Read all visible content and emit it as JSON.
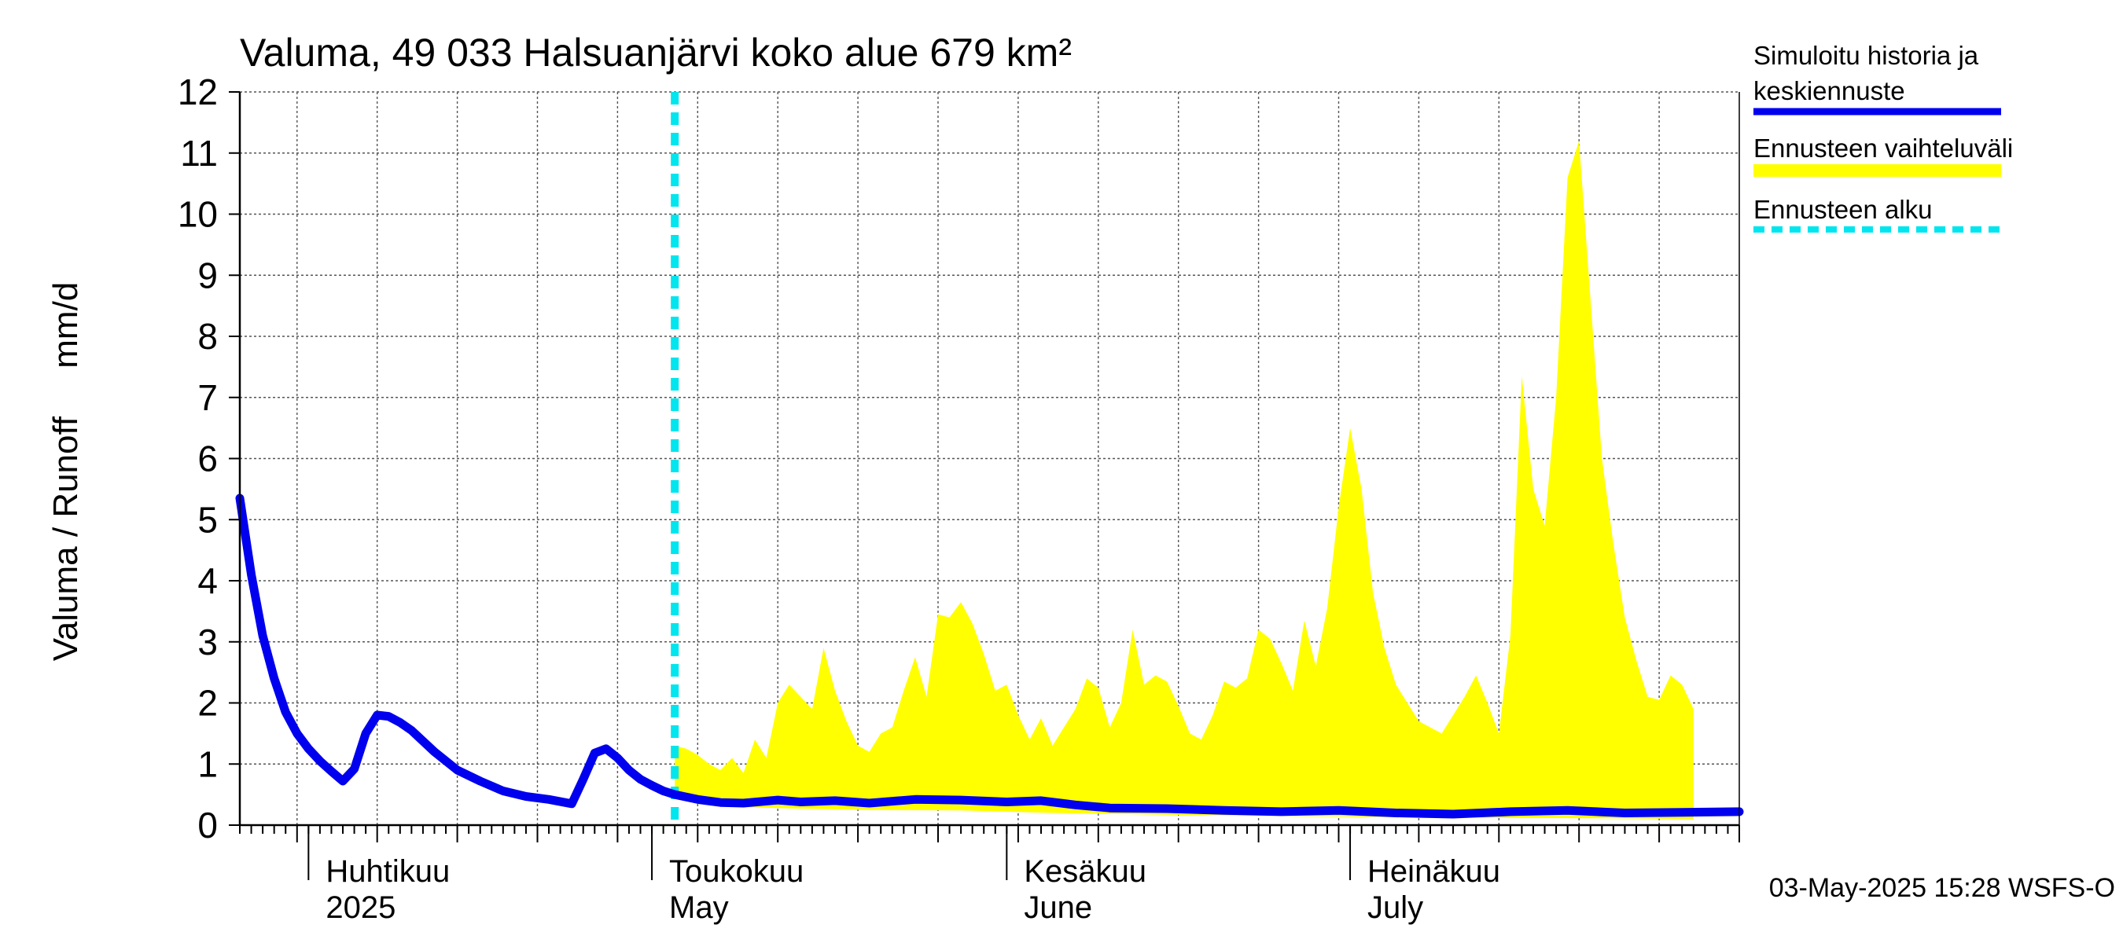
{
  "chart_data": {
    "type": "area",
    "title": "Valuma, 49 033 Halsuanjärvi koko alue 679 km²",
    "ylabel": "Valuma / Runoff     mm/d",
    "ylim": [
      0,
      12
    ],
    "yticks": [
      "0",
      "1",
      "2",
      "3",
      "4",
      "5",
      "6",
      "7",
      "8",
      "9",
      "10",
      "11",
      "12"
    ],
    "xlim": [
      "2025-03-26",
      "2025-08-04"
    ],
    "month_labels": [
      {
        "line1": "Huhtikuu",
        "line2": "2025",
        "date": "2025-04-01"
      },
      {
        "line1": "Toukokuu",
        "line2": "May",
        "date": "2025-05-01"
      },
      {
        "line1": "Kesäkuu",
        "line2": "June",
        "date": "2025-06-01"
      },
      {
        "line1": "Heinäkuu",
        "line2": "July",
        "date": "2025-07-01"
      }
    ],
    "grid": true,
    "legend_position": "right",
    "forecast_start": "2025-05-03",
    "series": [
      {
        "name": "Simuloitu historia ja keskiennuste",
        "color": "#0000ee",
        "points": [
          [
            "2025-03-26",
            5.35
          ],
          [
            "2025-03-27",
            4.1
          ],
          [
            "2025-03-28",
            3.1
          ],
          [
            "2025-03-29",
            2.4
          ],
          [
            "2025-03-30",
            1.85
          ],
          [
            "2025-03-31",
            1.5
          ],
          [
            "2025-04-01",
            1.25
          ],
          [
            "2025-04-02",
            1.05
          ],
          [
            "2025-04-03",
            0.88
          ],
          [
            "2025-04-04",
            0.72
          ],
          [
            "2025-04-05",
            0.92
          ],
          [
            "2025-04-06",
            1.5
          ],
          [
            "2025-04-07",
            1.8
          ],
          [
            "2025-04-08",
            1.78
          ],
          [
            "2025-04-09",
            1.68
          ],
          [
            "2025-04-10",
            1.55
          ],
          [
            "2025-04-12",
            1.2
          ],
          [
            "2025-04-14",
            0.9
          ],
          [
            "2025-04-16",
            0.72
          ],
          [
            "2025-04-18",
            0.56
          ],
          [
            "2025-04-20",
            0.47
          ],
          [
            "2025-04-22",
            0.42
          ],
          [
            "2025-04-24",
            0.35
          ],
          [
            "2025-04-25",
            0.75
          ],
          [
            "2025-04-26",
            1.18
          ],
          [
            "2025-04-27",
            1.25
          ],
          [
            "2025-04-28",
            1.1
          ],
          [
            "2025-04-29",
            0.9
          ],
          [
            "2025-04-30",
            0.75
          ],
          [
            "2025-05-01",
            0.65
          ],
          [
            "2025-05-02",
            0.56
          ],
          [
            "2025-05-03",
            0.5
          ],
          [
            "2025-05-05",
            0.42
          ],
          [
            "2025-05-07",
            0.37
          ],
          [
            "2025-05-09",
            0.36
          ],
          [
            "2025-05-12",
            0.41
          ],
          [
            "2025-05-14",
            0.38
          ],
          [
            "2025-05-17",
            0.4
          ],
          [
            "2025-05-20",
            0.36
          ],
          [
            "2025-05-24",
            0.42
          ],
          [
            "2025-05-28",
            0.41
          ],
          [
            "2025-06-01",
            0.38
          ],
          [
            "2025-06-04",
            0.4
          ],
          [
            "2025-06-07",
            0.33
          ],
          [
            "2025-06-10",
            0.28
          ],
          [
            "2025-06-15",
            0.27
          ],
          [
            "2025-06-20",
            0.24
          ],
          [
            "2025-06-25",
            0.22
          ],
          [
            "2025-06-30",
            0.24
          ],
          [
            "2025-07-05",
            0.2
          ],
          [
            "2025-07-10",
            0.18
          ],
          [
            "2025-07-15",
            0.22
          ],
          [
            "2025-07-20",
            0.24
          ],
          [
            "2025-07-25",
            0.2
          ],
          [
            "2025-07-30",
            0.21
          ],
          [
            "2025-08-04",
            0.22
          ]
        ]
      },
      {
        "name": "Ennusteen vaihteluväli",
        "color": "#ffff00",
        "upper": [
          [
            "2025-05-03",
            1.3
          ],
          [
            "2025-05-04",
            1.25
          ],
          [
            "2025-05-05",
            1.15
          ],
          [
            "2025-05-06",
            1.0
          ],
          [
            "2025-05-07",
            0.9
          ],
          [
            "2025-05-08",
            1.1
          ],
          [
            "2025-05-09",
            0.85
          ],
          [
            "2025-05-10",
            1.4
          ],
          [
            "2025-05-11",
            1.1
          ],
          [
            "2025-05-12",
            2.0
          ],
          [
            "2025-05-13",
            2.3
          ],
          [
            "2025-05-14",
            2.1
          ],
          [
            "2025-05-15",
            1.9
          ],
          [
            "2025-05-16",
            2.9
          ],
          [
            "2025-05-17",
            2.2
          ],
          [
            "2025-05-18",
            1.7
          ],
          [
            "2025-05-19",
            1.3
          ],
          [
            "2025-05-20",
            1.2
          ],
          [
            "2025-05-21",
            1.5
          ],
          [
            "2025-05-22",
            1.6
          ],
          [
            "2025-05-23",
            2.2
          ],
          [
            "2025-05-24",
            2.75
          ],
          [
            "2025-05-25",
            2.1
          ],
          [
            "2025-05-26",
            3.45
          ],
          [
            "2025-05-27",
            3.4
          ],
          [
            "2025-05-28",
            3.65
          ],
          [
            "2025-05-29",
            3.3
          ],
          [
            "2025-05-30",
            2.8
          ],
          [
            "2025-05-31",
            2.2
          ],
          [
            "2025-06-01",
            2.3
          ],
          [
            "2025-06-02",
            1.8
          ],
          [
            "2025-06-03",
            1.4
          ],
          [
            "2025-06-04",
            1.75
          ],
          [
            "2025-06-05",
            1.3
          ],
          [
            "2025-06-06",
            1.6
          ],
          [
            "2025-06-07",
            1.9
          ],
          [
            "2025-06-08",
            2.4
          ],
          [
            "2025-06-09",
            2.25
          ],
          [
            "2025-06-10",
            1.6
          ],
          [
            "2025-06-11",
            2.0
          ],
          [
            "2025-06-12",
            3.2
          ],
          [
            "2025-06-13",
            2.3
          ],
          [
            "2025-06-14",
            2.45
          ],
          [
            "2025-06-15",
            2.35
          ],
          [
            "2025-06-16",
            1.95
          ],
          [
            "2025-06-17",
            1.5
          ],
          [
            "2025-06-18",
            1.4
          ],
          [
            "2025-06-19",
            1.8
          ],
          [
            "2025-06-20",
            2.35
          ],
          [
            "2025-06-21",
            2.25
          ],
          [
            "2025-06-22",
            2.4
          ],
          [
            "2025-06-23",
            3.2
          ],
          [
            "2025-06-24",
            3.05
          ],
          [
            "2025-06-25",
            2.65
          ],
          [
            "2025-06-26",
            2.2
          ],
          [
            "2025-06-27",
            3.35
          ],
          [
            "2025-06-28",
            2.6
          ],
          [
            "2025-06-29",
            3.55
          ],
          [
            "2025-06-30",
            5.2
          ],
          [
            "2025-07-01",
            6.5
          ],
          [
            "2025-07-02",
            5.5
          ],
          [
            "2025-07-03",
            3.8
          ],
          [
            "2025-07-04",
            2.9
          ],
          [
            "2025-07-05",
            2.3
          ],
          [
            "2025-07-06",
            2.0
          ],
          [
            "2025-07-07",
            1.7
          ],
          [
            "2025-07-08",
            1.6
          ],
          [
            "2025-07-09",
            1.5
          ],
          [
            "2025-07-10",
            1.8
          ],
          [
            "2025-07-11",
            2.1
          ],
          [
            "2025-07-12",
            2.45
          ],
          [
            "2025-07-13",
            2.0
          ],
          [
            "2025-07-14",
            1.5
          ],
          [
            "2025-07-15",
            3.1
          ],
          [
            "2025-07-16",
            7.35
          ],
          [
            "2025-07-17",
            5.5
          ],
          [
            "2025-07-18",
            4.9
          ],
          [
            "2025-07-19",
            7.0
          ],
          [
            "2025-07-20",
            10.6
          ],
          [
            "2025-07-21",
            11.2
          ],
          [
            "2025-07-22",
            8.6
          ],
          [
            "2025-07-23",
            6.0
          ],
          [
            "2025-07-24",
            4.6
          ],
          [
            "2025-07-25",
            3.4
          ],
          [
            "2025-07-26",
            2.7
          ],
          [
            "2025-07-27",
            2.1
          ],
          [
            "2025-07-28",
            2.05
          ],
          [
            "2025-07-29",
            2.45
          ],
          [
            "2025-07-30",
            2.3
          ],
          [
            "2025-07-31",
            1.9
          ]
        ],
        "lower": [
          [
            "2025-05-03",
            0.5
          ],
          [
            "2025-05-08",
            0.3
          ],
          [
            "2025-05-14",
            0.27
          ],
          [
            "2025-05-20",
            0.25
          ],
          [
            "2025-05-28",
            0.24
          ],
          [
            "2025-06-05",
            0.2
          ],
          [
            "2025-06-15",
            0.17
          ],
          [
            "2025-06-25",
            0.15
          ],
          [
            "2025-07-05",
            0.13
          ],
          [
            "2025-07-15",
            0.12
          ],
          [
            "2025-07-25",
            0.11
          ],
          [
            "2025-07-31",
            0.1
          ]
        ]
      },
      {
        "name": "Ennusteen alku",
        "color": "#00e5ee"
      }
    ],
    "legend": [
      {
        "line1": "Simuloitu historia ja",
        "line2": "keskiennuste",
        "color": "#0000ee",
        "style": "solid"
      },
      {
        "line1": "Ennusteen vaihteluväli",
        "line2": "",
        "color": "#ffff00",
        "style": "band"
      },
      {
        "line1": "Ennusteen alku",
        "line2": "",
        "color": "#00e5ee",
        "style": "dashed"
      }
    ],
    "footer": "03-May-2025 15:28 WSFS-O"
  }
}
